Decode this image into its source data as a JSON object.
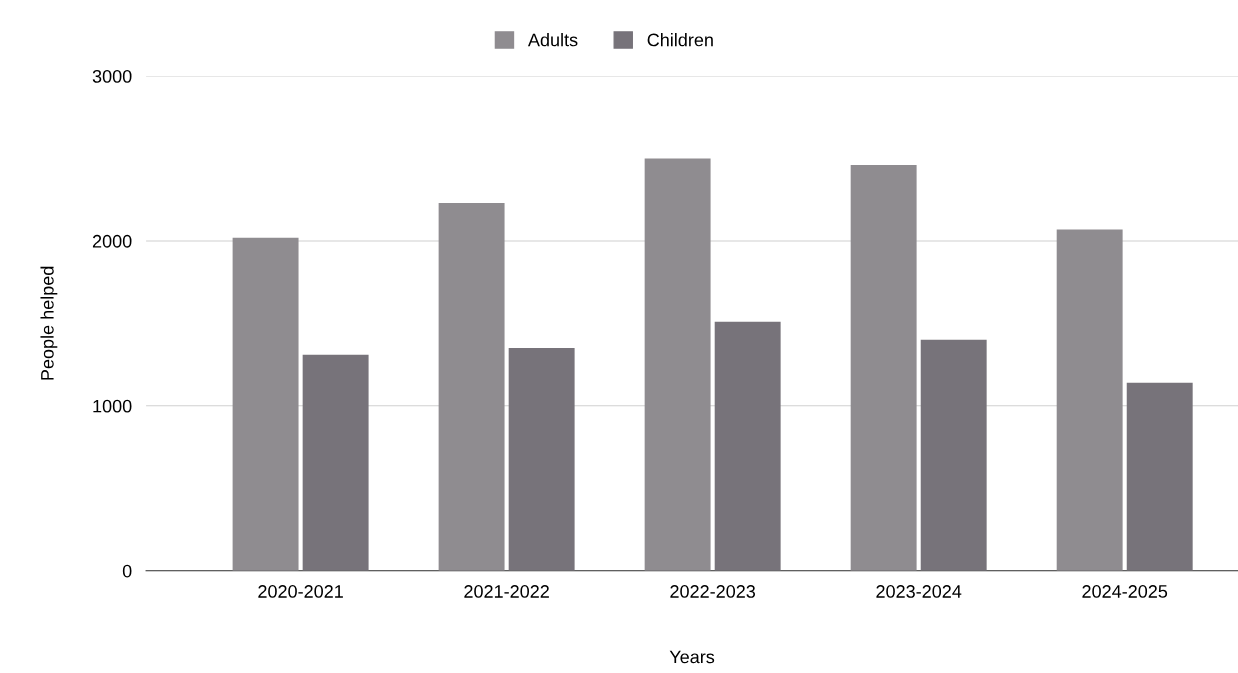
{
  "chart_data": {
    "type": "bar",
    "xlabel": "Years",
    "ylabel": "People helped",
    "categories": [
      "2020-2021",
      "2021-2022",
      "2022-2023",
      "2023-2024",
      "2024-2025"
    ],
    "series": [
      {
        "name": "Adults",
        "color": "#8f8c90",
        "values": [
          2020,
          2230,
          2500,
          2460,
          2070
        ]
      },
      {
        "name": "Children",
        "color": "#77737a",
        "values": [
          1310,
          1350,
          1510,
          1400,
          1140
        ]
      }
    ],
    "ylim": [
      0,
      3000
    ],
    "yticks": [
      0,
      1000,
      2000,
      3000
    ],
    "grid": "y",
    "legend": "top"
  }
}
